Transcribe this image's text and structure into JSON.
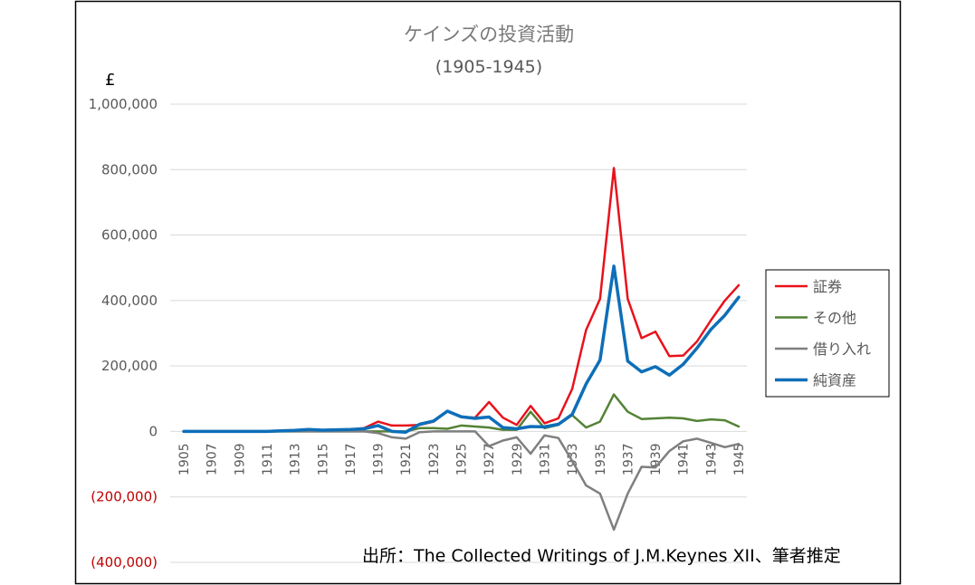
{
  "chart_data": {
    "type": "line",
    "title": "ケインズの投資活動",
    "subtitle": "(1905-1945)",
    "ylabel": "£",
    "source": "出所：The Collected Writings of J.M.Keynes XII、筆者推定",
    "ylim": [
      -400000,
      1000000
    ],
    "yticks": [
      1000000,
      800000,
      600000,
      400000,
      200000,
      0,
      -200000,
      -400000
    ],
    "ytick_labels": [
      "1,000,000",
      "800,000",
      "600,000",
      "400,000",
      "200,000",
      "0",
      "(200,000)",
      "(400,000)"
    ],
    "xtick_labels": [
      "1905",
      "1907",
      "1909",
      "1911",
      "1913",
      "1915",
      "1917",
      "1919",
      "1921",
      "1923",
      "1925",
      "1927",
      "1929",
      "1931",
      "1933",
      "1935",
      "1937",
      "1939",
      "1941",
      "1943",
      "1945"
    ],
    "grid": true,
    "legend_position": "right",
    "x": [
      1905,
      1906,
      1907,
      1908,
      1909,
      1910,
      1911,
      1912,
      1913,
      1914,
      1915,
      1916,
      1917,
      1918,
      1919,
      1920,
      1921,
      1922,
      1923,
      1924,
      1925,
      1926,
      1927,
      1928,
      1929,
      1930,
      1931,
      1932,
      1933,
      1934,
      1935,
      1936,
      1937,
      1938,
      1939,
      1940,
      1941,
      1942,
      1943,
      1944,
      1945
    ],
    "series": [
      {
        "name": "証券",
        "color": "#e8121b",
        "values": [
          0,
          0,
          0,
          0,
          0,
          0,
          0,
          2000,
          3000,
          6000,
          4000,
          5000,
          6000,
          10000,
          30000,
          18000,
          18000,
          20000,
          30000,
          62000,
          45000,
          42000,
          90000,
          42000,
          20000,
          78000,
          25000,
          40000,
          130000,
          310000,
          405000,
          805000,
          405000,
          285000,
          305000,
          230000,
          232000,
          275000,
          340000,
          400000,
          447000
        ]
      },
      {
        "name": "その他",
        "color": "#548235",
        "values": [
          0,
          0,
          0,
          0,
          0,
          0,
          0,
          0,
          0,
          0,
          0,
          0,
          0,
          0,
          0,
          0,
          0,
          10000,
          10000,
          8000,
          18000,
          15000,
          12000,
          5000,
          5000,
          60000,
          10000,
          20000,
          50000,
          12000,
          30000,
          113000,
          60000,
          38000,
          40000,
          42000,
          40000,
          32000,
          37000,
          34000,
          15000
        ]
      },
      {
        "name": "借り入れ",
        "color": "#7f7f7f",
        "values": [
          0,
          0,
          0,
          0,
          0,
          0,
          0,
          0,
          0,
          0,
          0,
          0,
          0,
          0,
          -5000,
          -18000,
          -22000,
          -2000,
          0,
          0,
          0,
          0,
          -45000,
          -28000,
          -18000,
          -68000,
          -12000,
          -20000,
          -90000,
          -165000,
          -190000,
          -300000,
          -190000,
          -108000,
          -110000,
          -60000,
          -30000,
          -22000,
          -35000,
          -48000,
          -38000
        ]
      },
      {
        "name": "純資産",
        "color": "#0e6eb8",
        "values": [
          0,
          0,
          0,
          0,
          0,
          0,
          0,
          2000,
          3000,
          6000,
          4000,
          5000,
          6000,
          8000,
          18000,
          0,
          -2000,
          22000,
          32000,
          62000,
          45000,
          40000,
          44000,
          12000,
          8000,
          15000,
          14000,
          22000,
          52000,
          145000,
          218000,
          505000,
          215000,
          182000,
          198000,
          172000,
          205000,
          255000,
          312000,
          355000,
          410000
        ]
      }
    ]
  }
}
